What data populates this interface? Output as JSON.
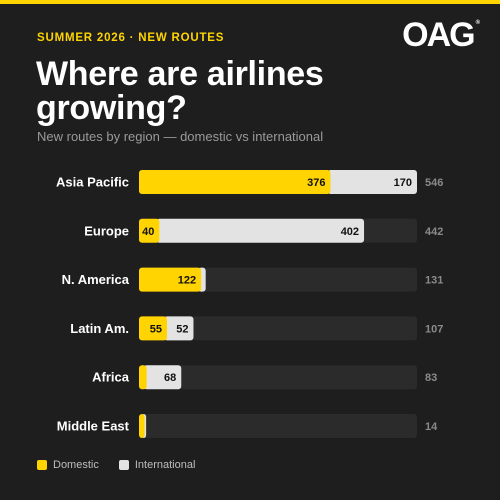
{
  "header": {
    "kicker": "SUMMER 2026 · NEW ROUTES",
    "logo": "OAG",
    "logo_mark": "®",
    "title": "Where are airlines growing?",
    "subtitle": "New routes by region — domestic vs international"
  },
  "colors": {
    "accent": "#ffd400",
    "domestic": "#ffd400",
    "international": "#e3e3e3",
    "track": "#2b2b2b",
    "background": "#1e1e1e"
  },
  "chart_data": {
    "type": "bar",
    "orientation": "horizontal",
    "stacked": true,
    "categories": [
      "Asia Pacific",
      "Europe",
      "N. America",
      "Latin Am.",
      "Africa",
      "Middle East"
    ],
    "series": [
      {
        "name": "Domestic",
        "values": [
          376,
          40,
          122,
          55,
          15,
          11
        ]
      },
      {
        "name": "International",
        "values": [
          170,
          402,
          9,
          52,
          68,
          3
        ]
      }
    ],
    "data_labels": {
      "Domestic": [
        "376",
        "40",
        "122",
        "55",
        "",
        ""
      ],
      "International": [
        "170",
        "402",
        "",
        "52",
        "68",
        ""
      ]
    },
    "totals": [
      546,
      442,
      131,
      107,
      83,
      14
    ],
    "xlim": [
      0,
      546
    ],
    "grid": false,
    "legend": "bottom-left",
    "title": "Where are airlines growing?",
    "subtitle": "New routes by region — domestic vs international"
  },
  "legend": {
    "items": [
      {
        "label": "Domestic"
      },
      {
        "label": "International"
      }
    ]
  }
}
